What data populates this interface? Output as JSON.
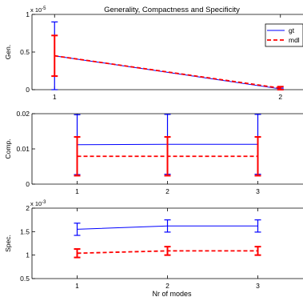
{
  "title": "Generality, Compactness and Specificity",
  "xlabel": "Nr of modes",
  "legend": [
    {
      "label": "gt",
      "color": "#0000ff",
      "dash": false
    },
    {
      "label": "mdl",
      "color": "#ff0000",
      "dash": true
    }
  ],
  "colors": {
    "gt": "#0000ff",
    "mdl": "#ff0000"
  },
  "chart_data": [
    {
      "type": "line",
      "ylabel": "Gen.",
      "exponent_label": "x 10",
      "exponent_power": "-5",
      "x": [
        1,
        2
      ],
      "xlim": [
        0.9,
        2.1
      ],
      "ylim": [
        0,
        1
      ],
      "xticks": [
        1,
        2
      ],
      "yticks": [
        0,
        0.5,
        1
      ],
      "ytick_labels": [
        "0",
        "0.5",
        "1"
      ],
      "legend_position": "top-right",
      "series": [
        {
          "name": "gt",
          "y": [
            0.45,
            0.01
          ],
          "err_low": [
            0.45,
            0.01
          ],
          "err_high": [
            0.45,
            0.01
          ]
        },
        {
          "name": "mdl",
          "y": [
            0.45,
            0.02
          ],
          "err_low": [
            0.27,
            0.02
          ],
          "err_high": [
            0.27,
            0.02
          ]
        }
      ]
    },
    {
      "type": "line",
      "ylabel": "Comp.",
      "x": [
        1,
        2,
        3
      ],
      "xlim": [
        0.5,
        3.5
      ],
      "ylim": [
        0,
        0.02
      ],
      "xticks": [
        1,
        2,
        3
      ],
      "yticks": [
        0,
        0.01,
        0.02
      ],
      "ytick_labels": [
        "0",
        "0.01",
        "0.02"
      ],
      "series": [
        {
          "name": "gt",
          "y": [
            0.0112,
            0.0113,
            0.0113
          ],
          "err_low": [
            0.0085,
            0.0085,
            0.0085
          ],
          "err_high": [
            0.0085,
            0.0085,
            0.0085
          ]
        },
        {
          "name": "mdl",
          "y": [
            0.0079,
            0.0079,
            0.0079
          ],
          "err_low": [
            0.0055,
            0.0055,
            0.0055
          ],
          "err_high": [
            0.0055,
            0.0055,
            0.0055
          ]
        }
      ]
    },
    {
      "type": "line",
      "ylabel": "Spec.",
      "exponent_label": "x 10",
      "exponent_power": "-3",
      "x": [
        1,
        2,
        3
      ],
      "xlim": [
        0.5,
        3.5
      ],
      "ylim": [
        0.5,
        2
      ],
      "xticks": [
        1,
        2,
        3
      ],
      "yticks": [
        0.5,
        1,
        1.5,
        2
      ],
      "ytick_labels": [
        "0.5",
        "1",
        "1.5",
        "2"
      ],
      "series": [
        {
          "name": "gt",
          "y": [
            1.55,
            1.62,
            1.62
          ],
          "err_low": [
            0.13,
            0.13,
            0.13
          ],
          "err_high": [
            0.13,
            0.13,
            0.13
          ]
        },
        {
          "name": "mdl",
          "y": [
            1.04,
            1.09,
            1.09
          ],
          "err_low": [
            0.09,
            0.09,
            0.09
          ],
          "err_high": [
            0.09,
            0.09,
            0.09
          ]
        }
      ]
    }
  ]
}
